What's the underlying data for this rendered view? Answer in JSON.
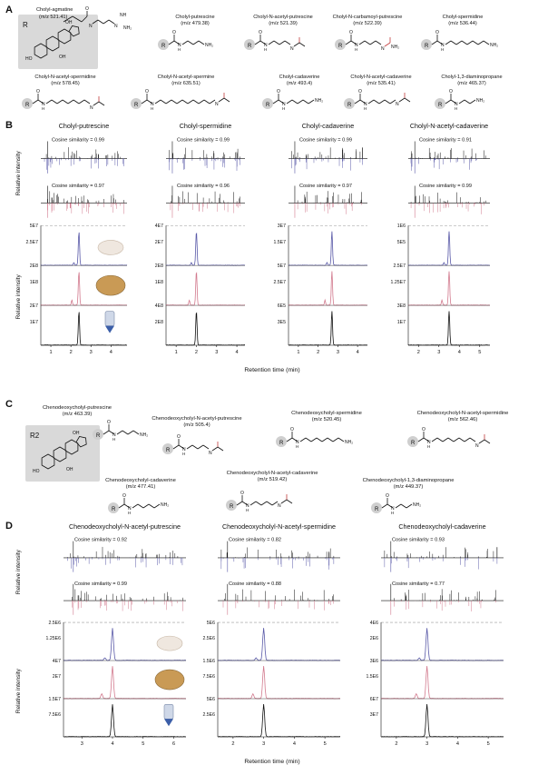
{
  "colors": {
    "ink": "#111111",
    "amine_blue": "#2b6cc4",
    "amide_red": "#c23b3b",
    "mouse_trace": "#5a5aa8",
    "lion_trace": "#d27a8e",
    "standard_trace": "#111111",
    "core_box": "#d9d9d9",
    "dash": "#9a9a9a"
  },
  "panels": {
    "A": {
      "letter": "A",
      "core_label": "R",
      "compounds": [
        {
          "name": "Cholyl-agmatine",
          "mz": "(m/z 521.41)"
        },
        {
          "name": "Cholyl-putrescine",
          "mz": "(m/z 479.38)"
        },
        {
          "name": "Cholyl-N-acetyl-putrescine",
          "mz": "(m/z 521.39)"
        },
        {
          "name": "Cholyl-N-carbamoyl-putrescine",
          "mz": "(m/z 522.39)"
        },
        {
          "name": "Cholyl-spermidine",
          "mz": "(m/z 536.44)"
        },
        {
          "name": "Cholyl-N-acetyl-spermidine",
          "mz": "(m/z 578.45)"
        },
        {
          "name": "Cholyl-N-acetyl-spermine",
          "mz": "(m/z 635.51)"
        },
        {
          "name": "Cholyl-cadaverine",
          "mz": "(m/z 493.4)"
        },
        {
          "name": "Cholyl-N-acetyl-cadaverine",
          "mz": "(m/z 535.41)"
        },
        {
          "name": "Cholyl-1,3-diaminopropane",
          "mz": "(m/z 465.37)"
        }
      ]
    },
    "B": {
      "letter": "B",
      "ylabel_top": "Relative intensity",
      "ylabel_bottom": "Relative intensity",
      "xlabel": "Retention time (min)",
      "subpanels": [
        {
          "title": "Cholyl-putrescine",
          "cos1": "Cosine similarity = 0.99",
          "cos2": "Cosine similarity = 0.97",
          "ymax": "5E7",
          "ticks_mouse": [
            "2.5E7",
            "2E8"
          ],
          "ticks_lion": [
            "1E8",
            "2E7"
          ],
          "ticks_std": [
            "1E7"
          ],
          "xticks": [
            "1",
            "2",
            "3",
            "4"
          ],
          "xrange": [
            0.5,
            4.8
          ],
          "peak_rt": 2.4
        },
        {
          "title": "Cholyl-spermidine",
          "cos1": "Cosine similarity = 0.99",
          "cos2": "Cosine similarity = 0.96",
          "ymax": "4E7",
          "ticks_mouse": [
            "2E7",
            "2E8"
          ],
          "ticks_lion": [
            "1E8",
            "4E8"
          ],
          "ticks_std": [
            "2E8"
          ],
          "xticks": [
            "1",
            "2",
            "3",
            "4"
          ],
          "xrange": [
            0.5,
            4.4
          ],
          "peak_rt": 2.0
        },
        {
          "title": "Cholyl-cadaverine",
          "cos1": "Cosine similarity = 0.99",
          "cos2": "Cosine similarity = 0.97",
          "ymax": "3E7",
          "ticks_mouse": [
            "1.5E7",
            "5E7"
          ],
          "ticks_lion": [
            "2.5E7",
            "6E5"
          ],
          "ticks_std": [
            "3E5"
          ],
          "xticks": [
            "1",
            "2",
            "3",
            "4"
          ],
          "xrange": [
            0.5,
            4.5
          ],
          "peak_rt": 2.7
        },
        {
          "title": "Cholyl-N-acetyl-cadaverine",
          "cos1": "Cosine similarity = 0.91",
          "cos2": "Cosine similarity = 0.99",
          "ymax": "1E6",
          "ticks_mouse": [
            "5E5",
            "2.5E7"
          ],
          "ticks_lion": [
            "1.25E7",
            "3E8"
          ],
          "ticks_std": [
            "1E7"
          ],
          "xticks": [
            "2",
            "3",
            "4",
            "5"
          ],
          "xrange": [
            1.5,
            5.5
          ],
          "peak_rt": 3.5
        }
      ]
    },
    "C": {
      "letter": "C",
      "core_label": "R2",
      "compounds": [
        {
          "name": "Chenodeoxycholyl-putrescine",
          "mz": "(m/z 463.39)"
        },
        {
          "name": "Chenodeoxycholyl-N-acetyl-putrescine",
          "mz": "(m/z 505.4)"
        },
        {
          "name": "Chenodeoxycholyl-spermidine",
          "mz": "(m/z 520.45)"
        },
        {
          "name": "Chenodeoxycholyl-N-acetyl-spermidine",
          "mz": "(m/z 562.46)"
        },
        {
          "name": "Chenodeoxycholyl-cadaverine",
          "mz": "(m/z 477.41)"
        },
        {
          "name": "Chenodeoxycholyl-N-acetyl-cadaverine",
          "mz": "(m/z 519.42)"
        },
        {
          "name": "Chenodeoxycholyl-1,3-diaminopropane",
          "mz": "(m/z 449.37)"
        }
      ]
    },
    "D": {
      "letter": "D",
      "ylabel_top": "Relative intensity",
      "ylabel_bottom": "Relative intensity",
      "xlabel": "Retention time (min)",
      "subpanels": [
        {
          "title": "Chenodeoxycholyl-N-acetyl-putrescine",
          "cos1": "Cosine similarity = 0.92",
          "cos2": "Cosine similarity = 0.99",
          "ymax": "2.5E6",
          "ticks_mouse": [
            "1.25E6",
            "4E7"
          ],
          "ticks_lion": [
            "2E7",
            "1.5E7"
          ],
          "ticks_std": [
            "7.5E6"
          ],
          "xticks": [
            "3",
            "4",
            "5",
            "6"
          ],
          "xrange": [
            2.4,
            6.4
          ],
          "peak_rt": 4.0
        },
        {
          "title": "Chenodeoxycholyl-N-acetyl-spermidine",
          "cos1": "Cosine similarity = 0.82",
          "cos2": "Cosine similarity = 0.88",
          "ymax": "5E6",
          "ticks_mouse": [
            "2.5E6",
            "1.5E6"
          ],
          "ticks_lion": [
            "7.5E6",
            "5E6"
          ],
          "ticks_std": [
            "2.5E6"
          ],
          "xticks": [
            "2",
            "3",
            "4",
            "5"
          ],
          "xrange": [
            1.5,
            5.5
          ],
          "peak_rt": 3.0
        },
        {
          "title": "Chenodeoxycholyl-cadaverine",
          "cos1": "Cosine similarity = 0.93",
          "cos2": "Cosine similarity = 0.77",
          "ymax": "4E6",
          "ticks_mouse": [
            "2E6",
            "3E6"
          ],
          "ticks_lion": [
            "1.5E6",
            "6E7"
          ],
          "ticks_std": [
            "3E7"
          ],
          "xticks": [
            "2",
            "3",
            "4",
            "5"
          ],
          "xrange": [
            1.5,
            5.5
          ],
          "peak_rt": 3.0
        }
      ]
    }
  }
}
